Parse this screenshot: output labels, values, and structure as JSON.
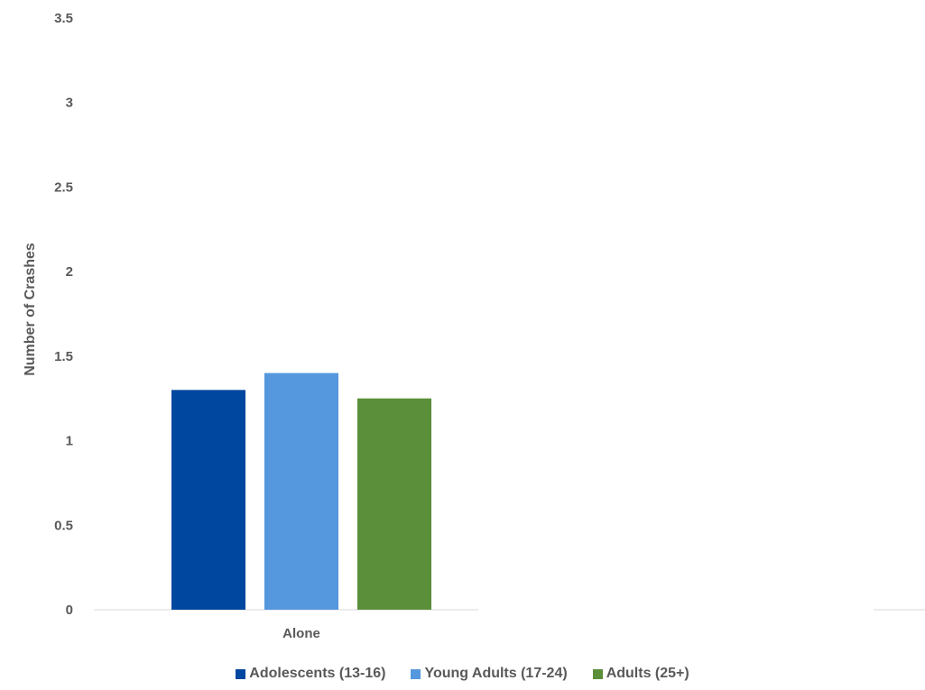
{
  "chart_data": {
    "type": "bar",
    "categories": [
      "Alone"
    ],
    "series": [
      {
        "name": "Adolescents (13-16)",
        "values": [
          1.3
        ],
        "color": "#0047a0"
      },
      {
        "name": "Young Adults (17-24)",
        "values": [
          1.4
        ],
        "color": "#5598dd"
      },
      {
        "name": "Adults (25+)",
        "values": [
          1.25
        ],
        "color": "#5b8f3a"
      }
    ],
    "title": "",
    "xlabel": "",
    "ylabel": "Number of Crashes",
    "ylim": [
      0,
      3.5
    ],
    "yticks": [
      "0",
      "0.5",
      "1",
      "1.5",
      "2",
      "2.5",
      "3",
      "3.5"
    ],
    "grid": false,
    "legend_position": "bottom"
  }
}
